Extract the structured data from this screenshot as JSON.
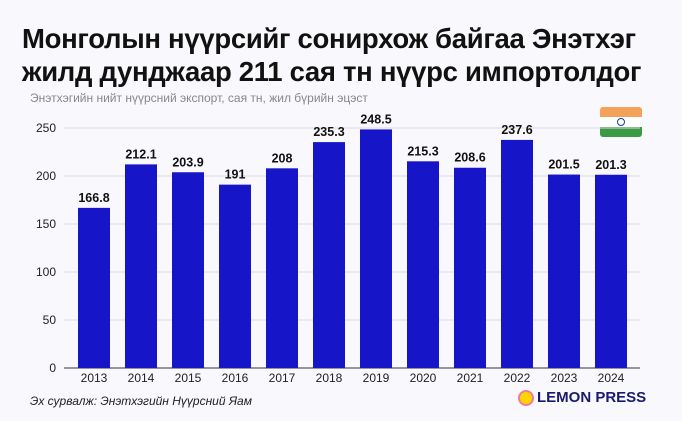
{
  "title_line1": "Монголын нүүрсийг сонирхож байгаа Энэтхэг",
  "title_line2": "жилд дунджаар 211 сая тн нүүрс импортолдог",
  "subtitle": "Энэтхэгийн нийт нүүрсний экспорт, сая тн, жил бүрийн эцэст",
  "source": "Эх сурвалж: Энэтхэгийн Нүүрсний Яам",
  "logo": "LEMON PRESS",
  "icons": {
    "flag": "india-flag-icon",
    "logo": "lemon-icon"
  },
  "chart_data": {
    "type": "bar",
    "categories": [
      "2013",
      "2014",
      "2015",
      "2016",
      "2017",
      "2018",
      "2019",
      "2020",
      "2021",
      "2022",
      "2023",
      "2024"
    ],
    "values": [
      166.8,
      212.1,
      203.9,
      191,
      208,
      235.3,
      248.5,
      215.3,
      208.6,
      237.6,
      201.5,
      201.3
    ],
    "data_labels": [
      "166.8",
      "212.1",
      "203.9",
      "191",
      "208",
      "235.3",
      "248.5",
      "215.3",
      "208.6",
      "237.6",
      "201.5",
      "201.3"
    ],
    "ylim": [
      0,
      250
    ],
    "yticks": [
      "0",
      "50",
      "100",
      "150",
      "200",
      "250"
    ],
    "grid": true,
    "bar_color": "#1616c8"
  }
}
